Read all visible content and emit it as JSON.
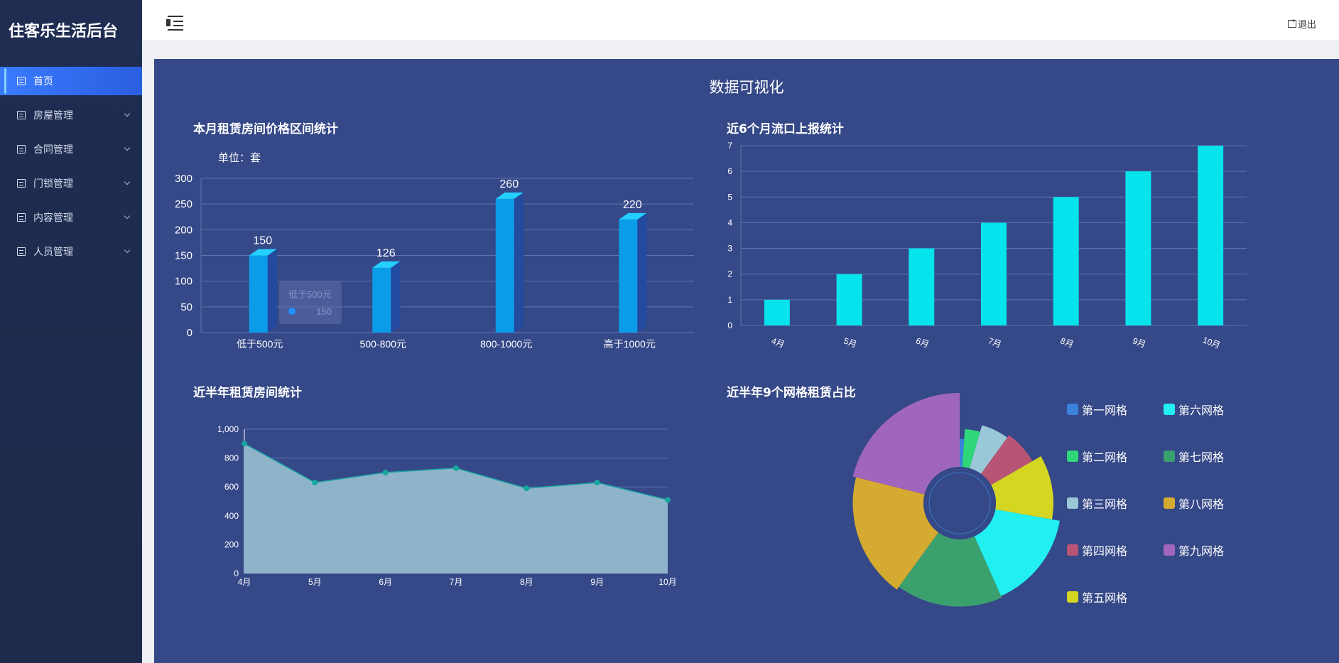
{
  "app": {
    "title": "住客乐生活后台"
  },
  "sidebar": {
    "items": [
      {
        "label": "首页",
        "active": true
      },
      {
        "label": "房屋管理",
        "active": false
      },
      {
        "label": "合同管理",
        "active": false
      },
      {
        "label": "门锁管理",
        "active": false
      },
      {
        "label": "内容管理",
        "active": false
      },
      {
        "label": "人员管理",
        "active": false
      }
    ]
  },
  "header": {
    "logout_label": "退出"
  },
  "main": {
    "title": "数据可视化",
    "panels": {
      "price_range": {
        "title": "本月租赁房间价格区间统计",
        "unit": "单位：套"
      },
      "reports": {
        "title": "近6个月流口上报统计"
      },
      "half_year": {
        "title": "近半年租赁房间统计"
      },
      "grid_share": {
        "title": "近半年9个网格租赁占比"
      }
    }
  },
  "tooltip": {
    "label": "低于500元",
    "value": "150"
  },
  "chart_data": [
    {
      "id": "price_range",
      "type": "bar",
      "categories": [
        "低于500元",
        "500-800元",
        "800-1000元",
        "高于1000元"
      ],
      "values": [
        150,
        126,
        260,
        220
      ],
      "ylim": [
        0,
        300
      ],
      "yticks": [
        0,
        50,
        100,
        150,
        200,
        250,
        300
      ],
      "colors": {
        "front": "#0a9ce8",
        "side": "#234a9e",
        "top": "#23d0ff"
      }
    },
    {
      "id": "reports",
      "type": "bar",
      "categories": [
        "4月",
        "5月",
        "6月",
        "7月",
        "8月",
        "9月",
        "10月"
      ],
      "values": [
        1,
        2,
        3,
        4,
        5,
        6,
        7
      ],
      "ylim": [
        0,
        7
      ],
      "yticks": [
        0,
        1,
        2,
        3,
        4,
        5,
        6,
        7
      ],
      "colors": {
        "bar": "#05e3ec"
      }
    },
    {
      "id": "half_year",
      "type": "area",
      "categories": [
        "4月",
        "5月",
        "6月",
        "7月",
        "8月",
        "9月",
        "10月"
      ],
      "values": [
        900,
        630,
        700,
        730,
        590,
        630,
        510
      ],
      "ylim": [
        0,
        1000
      ],
      "yticks": [
        "0",
        "200",
        "400",
        "600",
        "800",
        "1,000"
      ],
      "colors": {
        "fill": "#8fb4c9",
        "line": "#1aa6a6",
        "point": "#16a6a0"
      }
    },
    {
      "id": "grid_share",
      "type": "pie",
      "labels": [
        "第一网格",
        "第二网格",
        "第三网格",
        "第四网格",
        "第五网格",
        "第六网格",
        "第七网格",
        "第八网格",
        "第九网格"
      ],
      "values": [
        1,
        3,
        5,
        6,
        10,
        14,
        15,
        17,
        19
      ],
      "colors": [
        "#3a82dc",
        "#2fd67a",
        "#9ac8d8",
        "#b85474",
        "#d4d622",
        "#22f0f0",
        "#3aa06e",
        "#d4aa30",
        "#a066bc"
      ]
    }
  ]
}
